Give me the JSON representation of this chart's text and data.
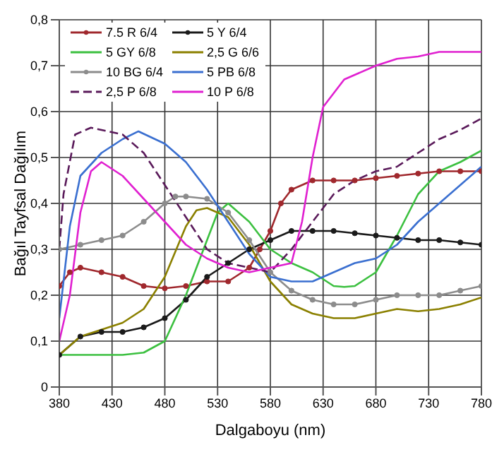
{
  "chart_data": {
    "type": "line",
    "xlabel": "Dalgaboyu (nm)",
    "ylabel": "Bağıl Tayfsal Dağılım",
    "xlim": [
      380,
      780
    ],
    "xticks": [
      380,
      430,
      480,
      530,
      580,
      630,
      680,
      730,
      780
    ],
    "ylim": [
      0,
      0.8
    ],
    "yticks": [
      0,
      {
        "value": 0.1,
        "label": "0,1"
      },
      {
        "value": 0.2,
        "label": "0,2"
      },
      {
        "value": 0.3,
        "label": "0,3"
      },
      {
        "value": 0.4,
        "label": "0,4"
      },
      {
        "value": 0.5,
        "label": "0,5"
      },
      {
        "value": 0.6,
        "label": "0,6"
      },
      {
        "value": 0.7,
        "label": "0,7"
      },
      {
        "value": 0.8,
        "label": "0,8"
      }
    ],
    "grid": true,
    "legend": "top left",
    "marker": "none",
    "line_style": "solid",
    "series": [
      {
        "name": "7.5 R 6/4",
        "color": "#a0282d",
        "marker": "circle",
        "x": [
          380,
          390,
          400,
          420,
          440,
          460,
          480,
          500,
          520,
          540,
          560,
          570,
          580,
          590,
          600,
          620,
          640,
          660,
          680,
          700,
          720,
          740,
          760,
          780
        ],
        "values": [
          0.22,
          0.25,
          0.26,
          0.25,
          0.24,
          0.22,
          0.215,
          0.22,
          0.23,
          0.23,
          0.26,
          0.3,
          0.34,
          0.4,
          0.43,
          0.45,
          0.45,
          0.45,
          0.455,
          0.46,
          0.465,
          0.47,
          0.47,
          0.47
        ]
      },
      {
        "name": "5 Y 6/4",
        "color": "#1a1a1a",
        "marker": "circle",
        "x": [
          380,
          400,
          420,
          440,
          460,
          480,
          500,
          520,
          540,
          560,
          580,
          600,
          620,
          640,
          660,
          680,
          700,
          720,
          740,
          760,
          780
        ],
        "values": [
          0.07,
          0.11,
          0.12,
          0.12,
          0.13,
          0.15,
          0.19,
          0.24,
          0.27,
          0.3,
          0.32,
          0.34,
          0.34,
          0.34,
          0.335,
          0.33,
          0.325,
          0.32,
          0.32,
          0.315,
          0.31
        ]
      },
      {
        "name": "5 GY 6/8",
        "color": "#3cc040",
        "x": [
          380,
          400,
          440,
          460,
          480,
          500,
          520,
          530,
          540,
          560,
          580,
          600,
          620,
          640,
          650,
          660,
          680,
          700,
          720,
          740,
          760,
          780
        ],
        "values": [
          0.07,
          0.07,
          0.07,
          0.075,
          0.1,
          0.2,
          0.32,
          0.38,
          0.4,
          0.36,
          0.3,
          0.27,
          0.25,
          0.22,
          0.218,
          0.22,
          0.25,
          0.33,
          0.42,
          0.47,
          0.49,
          0.515
        ]
      },
      {
        "name": "2,5 G 6/6",
        "color": "#8b8000",
        "x": [
          380,
          400,
          420,
          440,
          460,
          480,
          500,
          510,
          520,
          540,
          560,
          580,
          600,
          620,
          640,
          660,
          680,
          700,
          720,
          740,
          760,
          780
        ],
        "values": [
          0.07,
          0.11,
          0.125,
          0.14,
          0.17,
          0.24,
          0.35,
          0.385,
          0.39,
          0.37,
          0.31,
          0.23,
          0.18,
          0.16,
          0.15,
          0.15,
          0.16,
          0.17,
          0.165,
          0.17,
          0.18,
          0.195
        ]
      },
      {
        "name": "10 BG 6/4",
        "color": "#8c8c8c",
        "marker": "circle",
        "x": [
          380,
          400,
          420,
          440,
          460,
          480,
          490,
          500,
          520,
          540,
          560,
          580,
          600,
          620,
          640,
          660,
          680,
          700,
          720,
          740,
          760,
          780
        ],
        "values": [
          0.3,
          0.31,
          0.32,
          0.33,
          0.36,
          0.4,
          0.415,
          0.415,
          0.41,
          0.38,
          0.32,
          0.25,
          0.21,
          0.19,
          0.18,
          0.18,
          0.19,
          0.2,
          0.2,
          0.2,
          0.21,
          0.22
        ]
      },
      {
        "name": "5 PB 6/8",
        "color": "#3a6fd0",
        "x": [
          380,
          390,
          400,
          420,
          440,
          455,
          480,
          500,
          520,
          540,
          560,
          580,
          600,
          620,
          640,
          660,
          680,
          700,
          720,
          740,
          760,
          780
        ],
        "values": [
          0.15,
          0.35,
          0.46,
          0.51,
          0.54,
          0.557,
          0.53,
          0.49,
          0.43,
          0.36,
          0.29,
          0.24,
          0.23,
          0.23,
          0.25,
          0.27,
          0.28,
          0.31,
          0.36,
          0.4,
          0.44,
          0.48
        ]
      },
      {
        "name": "2,5 P 6/8",
        "color": "#5a1a5a",
        "line_style": "dashed",
        "x": [
          380,
          384,
          395,
          410,
          420,
          440,
          460,
          480,
          500,
          520,
          540,
          560,
          580,
          600,
          620,
          640,
          660,
          680,
          700,
          720,
          740,
          760,
          780
        ],
        "values": [
          0.3,
          0.42,
          0.55,
          0.565,
          0.56,
          0.55,
          0.51,
          0.44,
          0.37,
          0.3,
          0.27,
          0.26,
          0.25,
          0.3,
          0.36,
          0.42,
          0.45,
          0.47,
          0.48,
          0.51,
          0.54,
          0.56,
          0.585
        ]
      },
      {
        "name": "10 P 6/8",
        "color": "#e020d0",
        "x": [
          380,
          390,
          400,
          410,
          420,
          440,
          460,
          480,
          500,
          520,
          540,
          560,
          580,
          600,
          610,
          620,
          630,
          650,
          680,
          700,
          720,
          740,
          760,
          780
        ],
        "values": [
          0.1,
          0.2,
          0.38,
          0.47,
          0.49,
          0.46,
          0.41,
          0.36,
          0.31,
          0.28,
          0.26,
          0.25,
          0.26,
          0.27,
          0.36,
          0.5,
          0.61,
          0.67,
          0.7,
          0.715,
          0.72,
          0.73,
          0.73,
          0.73
        ]
      }
    ]
  }
}
